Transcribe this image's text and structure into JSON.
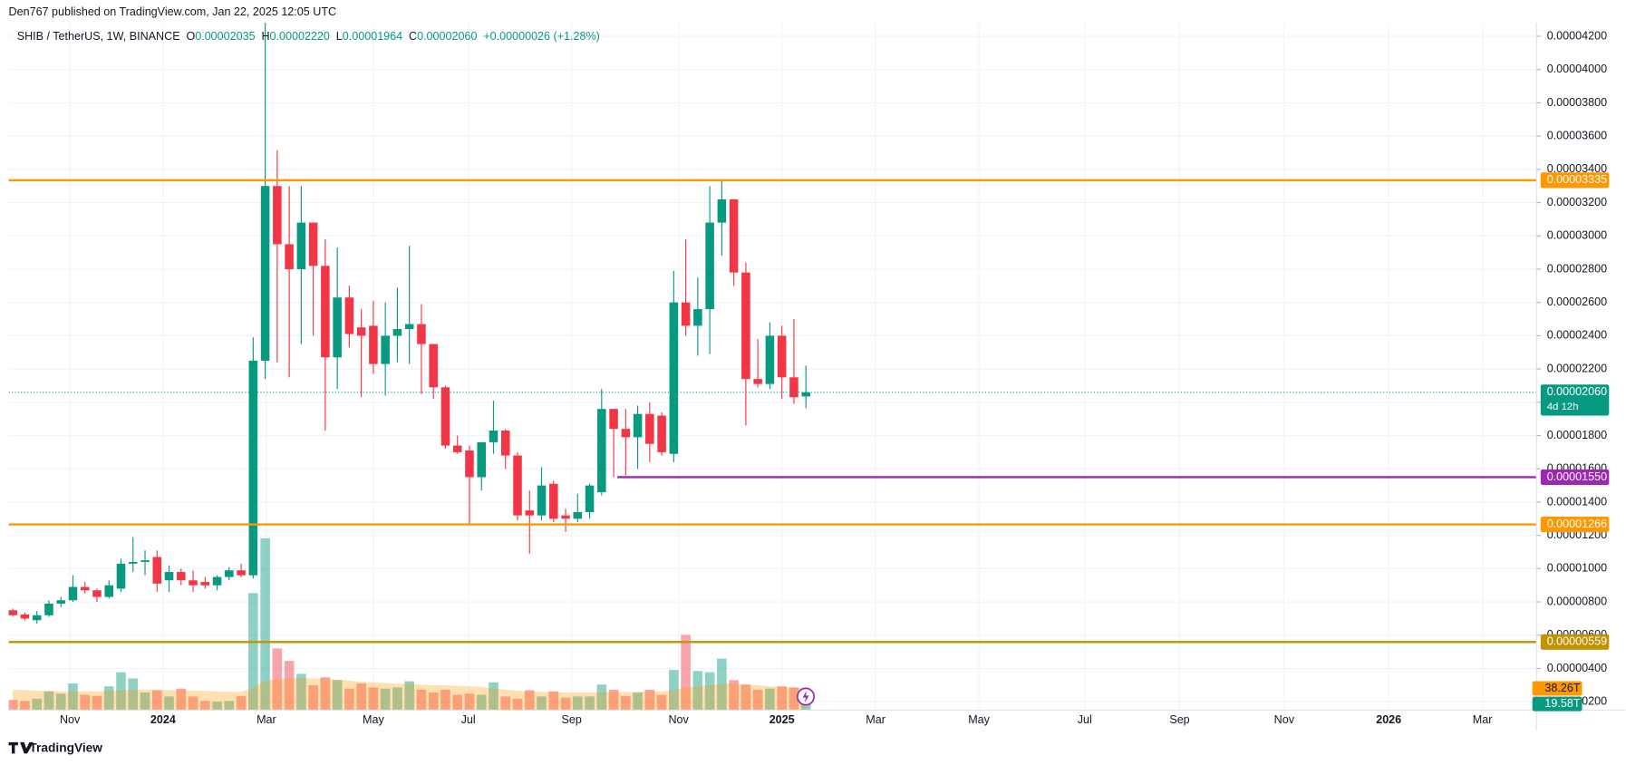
{
  "page": {
    "attribution": "Den767 published on TradingView.com, Jan 22, 2025 12:05 UTC",
    "footer": "TradingView"
  },
  "chart_data": {
    "type": "candlestick",
    "legend": {
      "symbol": "SHIB / TetherUS, 1W, BINANCE",
      "items": [
        {
          "key": "O",
          "value": "0.00002035"
        },
        {
          "key": "H",
          "value": "0.00002220"
        },
        {
          "key": "L",
          "value": "0.00001964"
        },
        {
          "key": "C",
          "value": "0.00002060"
        }
      ],
      "change": "+0.00000026 (+1.28%)"
    },
    "up_color": "#089981",
    "down_color": "#f23645",
    "open": [
      7.5e-06,
      7.25e-06,
      6.9e-06,
      7.2e-06,
      7.9e-06,
      8.1e-06,
      8.9e-06,
      8.7e-06,
      8.3e-06,
      8.8e-06,
      1.03e-05,
      1.04e-05,
      1.07e-05,
      9.3e-06,
      9.8e-06,
      9.3e-06,
      9.2e-06,
      9e-06,
      9.5e-06,
      9.9e-06,
      9.6e-06,
      2.25e-05,
      3.3e-05,
      2.95e-05,
      2.8e-05,
      3.08e-05,
      2.82e-05,
      2.27e-05,
      2.63e-05,
      2.45e-05,
      2.46e-05,
      2.23e-05,
      2.4e-05,
      2.44e-05,
      2.47e-05,
      2.35e-05,
      2.09e-05,
      1.74e-05,
      1.71e-05,
      1.55e-05,
      1.76e-05,
      1.83e-05,
      1.68e-05,
      1.35e-05,
      1.32e-05,
      1.51e-05,
      1.32e-05,
      1.3e-05,
      1.34e-05,
      1.46e-05,
      1.96e-05,
      1.84e-05,
      1.79e-05,
      1.93e-05,
      1.92e-05,
      1.69e-05,
      2.6e-05,
      2.46e-05,
      2.56e-05,
      3.08e-05,
      3.22e-05,
      2.78e-05,
      2.14e-05,
      2.11e-05,
      2.4e-05,
      2.15e-05,
      2.035e-05
    ],
    "high": [
      7.6e-06,
      7.35e-06,
      7.45e-06,
      8.1e-06,
      8.3e-06,
      9.6e-06,
      9.2e-06,
      8.8e-06,
      9.3e-06,
      1.06e-05,
      1.19e-05,
      1.11e-05,
      1.11e-05,
      1.02e-05,
      1e-05,
      9.9e-06,
      9.5e-06,
      9.6e-06,
      1.01e-05,
      1.03e-05,
      2.39e-05,
      4.42e-05,
      3.515e-05,
      3.3e-05,
      3.3e-05,
      3.08e-05,
      2.98e-05,
      2.93e-05,
      2.7e-05,
      2.56e-05,
      2.61e-05,
      2.6e-05,
      2.69e-05,
      2.94e-05,
      2.59e-05,
      2.35e-05,
      2.1e-05,
      1.8e-05,
      1.74e-05,
      1.76e-05,
      2.01e-05,
      1.84e-05,
      1.7e-05,
      1.47e-05,
      1.61e-05,
      1.53e-05,
      1.36e-05,
      1.45e-05,
      1.51e-05,
      2.08e-05,
      1.96e-05,
      1.96e-05,
      1.98e-05,
      2e-05,
      1.94e-05,
      2.79e-05,
      2.98e-05,
      2.75e-05,
      3.3e-05,
      3.34e-05,
      3.22e-05,
      2.84e-05,
      2.38e-05,
      2.48e-05,
      2.46e-05,
      2.5e-05,
      2.22e-05
    ],
    "low": [
      7.15e-06,
      6.9e-06,
      6.7e-06,
      7.1e-06,
      7.7e-06,
      8e-06,
      8.5e-06,
      8e-06,
      8.2e-06,
      8.6e-06,
      9.8e-06,
      9.6e-06,
      8.6e-06,
      8.6e-06,
      9e-06,
      8.6e-06,
      8.8e-06,
      8.7e-06,
      9.3e-06,
      9.5e-06,
      9.4e-06,
      2.14e-05,
      2.24e-05,
      2.15e-05,
      2.35e-05,
      2.4e-05,
      1.83e-05,
      2.08e-05,
      2.33e-05,
      2.03e-05,
      2.17e-05,
      2.04e-05,
      2.24e-05,
      2.23e-05,
      2.05e-05,
      2.02e-05,
      1.72e-05,
      1.69e-05,
      1.27e-05,
      1.47e-05,
      1.69e-05,
      1.6e-05,
      1.29e-05,
      1.09e-05,
      1.29e-05,
      1.28e-05,
      1.22e-05,
      1.28e-05,
      1.3e-05,
      1.44e-05,
      1.55e-05,
      1.56e-05,
      1.6e-05,
      1.64e-05,
      1.68e-05,
      1.64e-05,
      2.4e-05,
      2.28e-05,
      2.29e-05,
      2.88e-05,
      2.7e-05,
      1.86e-05,
      2.09e-05,
      2.08e-05,
      2.02e-05,
      1.99e-05,
      1.964e-05
    ],
    "close": [
      7.2e-06,
      7e-06,
      7.2e-06,
      7.9e-06,
      8.1e-06,
      8.9e-06,
      8.7e-06,
      8.3e-06,
      9e-06,
      1.03e-05,
      1.04e-05,
      1.05e-05,
      9.1e-06,
      9.8e-06,
      9.3e-06,
      9e-06,
      9e-06,
      9.5e-06,
      9.9e-06,
      9.6e-06,
      2.25e-05,
      3.3e-05,
      2.95e-05,
      2.8e-05,
      3.08e-05,
      2.82e-05,
      2.27e-05,
      2.63e-05,
      2.41e-05,
      2.4e-05,
      2.23e-05,
      2.4e-05,
      2.44e-05,
      2.47e-05,
      2.35e-05,
      2.09e-05,
      1.74e-05,
      1.7e-05,
      1.55e-05,
      1.76e-05,
      1.83e-05,
      1.68e-05,
      1.32e-05,
      1.32e-05,
      1.5e-05,
      1.3e-05,
      1.3e-05,
      1.34e-05,
      1.5e-05,
      1.96e-05,
      1.84e-05,
      1.79e-05,
      1.93e-05,
      1.75e-05,
      1.7e-05,
      2.6e-05,
      2.46e-05,
      2.56e-05,
      3.08e-05,
      3.22e-05,
      2.78e-05,
      2.14e-05,
      2.11e-05,
      2.4e-05,
      2.15e-05,
      2.03e-05,
      2.06e-05
    ],
    "volume": [
      18,
      16,
      20,
      33,
      29,
      47,
      27,
      25,
      42,
      67,
      56,
      31,
      35,
      24,
      38,
      24,
      16,
      15,
      16,
      25,
      207,
      304,
      109,
      87,
      64,
      44,
      58,
      53,
      38,
      47,
      40,
      38,
      40,
      51,
      36,
      31,
      36,
      27,
      29,
      27,
      49,
      24,
      20,
      35,
      24,
      33,
      22,
      24,
      24,
      45,
      36,
      25,
      31,
      36,
      27,
      71,
      133,
      69,
      67,
      91,
      53,
      45,
      36,
      38,
      42,
      40,
      19.58
    ],
    "volume_label": "19.58T",
    "volume_ma": [
      36,
      35,
      34,
      34,
      33,
      33,
      33,
      33,
      34,
      35,
      36,
      36,
      36,
      35,
      35,
      34,
      34,
      33,
      32,
      32,
      40,
      52,
      55,
      56,
      57,
      56,
      55,
      54,
      52,
      50,
      49,
      48,
      47,
      46,
      45,
      44,
      44,
      43,
      42,
      41,
      38,
      36,
      34,
      33,
      32,
      32,
      31,
      31,
      31,
      32,
      32,
      32,
      32,
      33,
      33,
      35,
      40,
      42,
      44,
      47,
      47,
      46,
      44,
      42,
      41,
      40,
      38.26
    ],
    "volume_ma_label": "38.26T",
    "volume_ma_color": "#ff9800",
    "volume_lim": [
      0,
      330
    ],
    "xlim": [
      -0.35,
      126.8
    ],
    "xticks": [
      {
        "value": 4.75,
        "label": "Nov"
      },
      {
        "value": 12.5,
        "label": "2024"
      },
      {
        "value": 21.1,
        "label": "Mar"
      },
      {
        "value": 30,
        "label": "May"
      },
      {
        "value": 37.9,
        "label": "Jul"
      },
      {
        "value": 46.5,
        "label": "Sep"
      },
      {
        "value": 55.4,
        "label": "Nov"
      },
      {
        "value": 64,
        "label": "2025"
      },
      {
        "value": 71.8,
        "label": "Mar"
      },
      {
        "value": 80.4,
        "label": "May"
      },
      {
        "value": 89.2,
        "label": "Jul"
      },
      {
        "value": 97.1,
        "label": "Sep"
      },
      {
        "value": 105.8,
        "label": "Nov"
      },
      {
        "value": 114.5,
        "label": "2026"
      },
      {
        "value": 122.3,
        "label": "Mar"
      }
    ],
    "ylim": [
      1.5e-06,
      4.281e-05
    ],
    "yticks": [
      {
        "value": 2e-06,
        "label": "0.00000200"
      },
      {
        "value": 4e-06,
        "label": "0.00000400"
      },
      {
        "value": 6e-06,
        "label": "0.00000600"
      },
      {
        "value": 8e-06,
        "label": "0.00000800"
      },
      {
        "value": 1e-05,
        "label": "0.00001000"
      },
      {
        "value": 1.2e-05,
        "label": "0.00001200"
      },
      {
        "value": 1.4e-05,
        "label": "0.00001400"
      },
      {
        "value": 1.6e-05,
        "label": "0.00001600"
      },
      {
        "value": 1.8e-05,
        "label": "0.00001800"
      },
      {
        "value": 2e-05,
        "label": "0.00002000"
      },
      {
        "value": 2.2e-05,
        "label": "0.00002200"
      },
      {
        "value": 2.4e-05,
        "label": "0.00002400"
      },
      {
        "value": 2.6e-05,
        "label": "0.00002600"
      },
      {
        "value": 2.8e-05,
        "label": "0.00002800"
      },
      {
        "value": 3e-05,
        "label": "0.00003000"
      },
      {
        "value": 3.2e-05,
        "label": "0.00003200"
      },
      {
        "value": 3.4e-05,
        "label": "0.00003400"
      },
      {
        "value": 3.6e-05,
        "label": "0.00003600"
      },
      {
        "value": 3.8e-05,
        "label": "0.00003800"
      },
      {
        "value": 4e-05,
        "label": "0.00004000"
      },
      {
        "value": 4.2e-05,
        "label": "0.00004200"
      }
    ],
    "grid": true,
    "levels": [
      {
        "value": 3.335e-05,
        "label": "0.00003335",
        "color": "#ff9800"
      },
      {
        "value": 1.55e-05,
        "label": "0.00001550",
        "color": "#9c27b0",
        "from": 50.3
      },
      {
        "value": 1.266e-05,
        "label": "0.00001266",
        "color": "#ff9800"
      },
      {
        "value": 5.59e-06,
        "label": "0.00000559",
        "color": "#c29200"
      }
    ],
    "last_price": {
      "label": "0.00002060",
      "countdown": "4d 12h"
    }
  }
}
